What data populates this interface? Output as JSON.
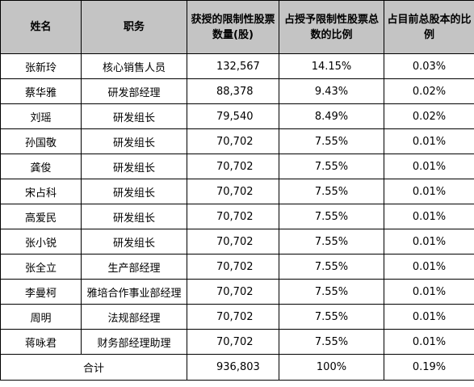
{
  "headers": {
    "name": "姓名",
    "position": "职务",
    "shares": "获授的限制性股票数量(股)",
    "pct_total_grant": "占授予限制性股票总数的比例",
    "pct_total_capital": "占目前总股本的比例"
  },
  "rows": [
    {
      "name": "张新玲",
      "position": "核心销售人员",
      "shares": "132,567",
      "pct_grant": "14.15%",
      "pct_capital": "0.03%"
    },
    {
      "name": "蔡华雅",
      "position": "研发部经理",
      "shares": "88,378",
      "pct_grant": "9.43%",
      "pct_capital": "0.02%"
    },
    {
      "name": "刘瑶",
      "position": "研发组长",
      "shares": "79,540",
      "pct_grant": "8.49%",
      "pct_capital": "0.02%"
    },
    {
      "name": "孙国敬",
      "position": "研发组长",
      "shares": "70,702",
      "pct_grant": "7.55%",
      "pct_capital": "0.01%"
    },
    {
      "name": "龚俊",
      "position": "研发组长",
      "shares": "70,702",
      "pct_grant": "7.55%",
      "pct_capital": "0.01%"
    },
    {
      "name": "宋占科",
      "position": "研发组长",
      "shares": "70,702",
      "pct_grant": "7.55%",
      "pct_capital": "0.01%"
    },
    {
      "name": "高爱民",
      "position": "研发组长",
      "shares": "70,702",
      "pct_grant": "7.55%",
      "pct_capital": "0.01%"
    },
    {
      "name": "张小锐",
      "position": "研发组长",
      "shares": "70,702",
      "pct_grant": "7.55%",
      "pct_capital": "0.01%"
    },
    {
      "name": "张全立",
      "position": "生产部经理",
      "shares": "70,702",
      "pct_grant": "7.55%",
      "pct_capital": "0.01%"
    },
    {
      "name": "李曼柯",
      "position": "雅培合作事业部经理",
      "shares": "70,702",
      "pct_grant": "7.55%",
      "pct_capital": "0.01%"
    },
    {
      "name": "周明",
      "position": "法规部经理",
      "shares": "70,702",
      "pct_grant": "7.55%",
      "pct_capital": "0.01%"
    },
    {
      "name": "蒋咏君",
      "position": "财务部经理助理",
      "shares": "70,702",
      "pct_grant": "7.55%",
      "pct_capital": "0.01%"
    }
  ],
  "total": {
    "label": "合计",
    "shares": "936,803",
    "pct_grant": "100%",
    "pct_capital": "0.19%"
  },
  "colors": {
    "header_background": "#c4c4c4",
    "border": "#000000"
  }
}
